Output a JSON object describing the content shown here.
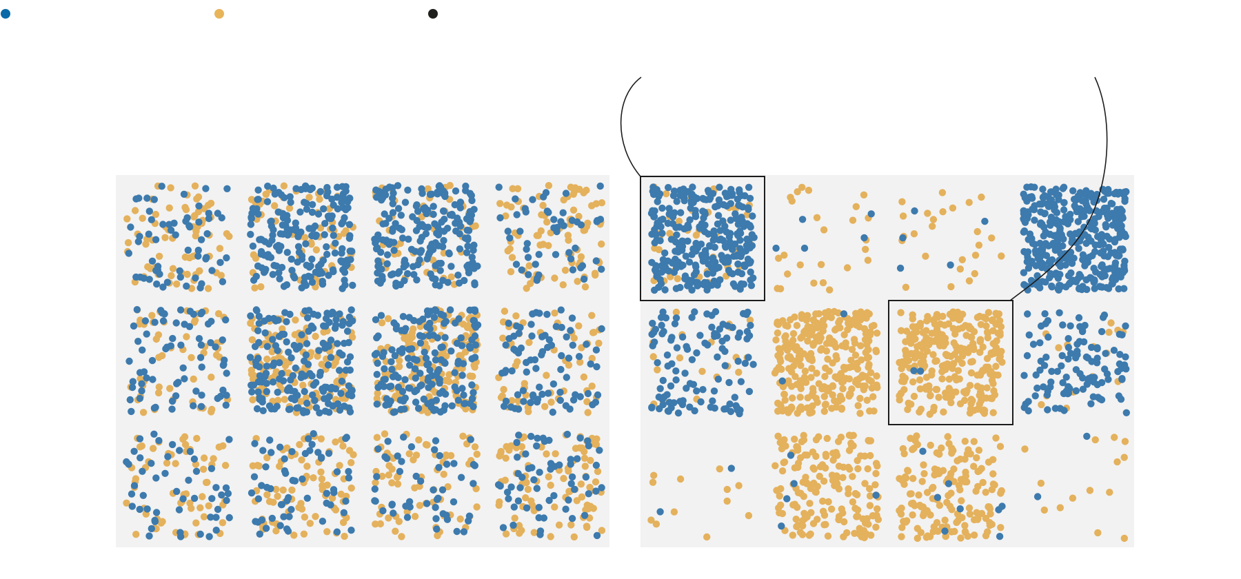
{
  "colors": {
    "blue": "#3d7aad",
    "yellow": "#e4b15c",
    "dark": "#1c1c1c",
    "panel": "#f2f2f2"
  },
  "legend": [
    {
      "id": "blue",
      "color": "#0a6aa8",
      "label": ""
    },
    {
      "id": "yellow",
      "color": "#e8b45a",
      "label": ""
    },
    {
      "id": "dark",
      "color": "#1f1f1b",
      "label": ""
    }
  ],
  "left_panel": {
    "cells": [
      [
        {
          "blue": 60,
          "yellow": 70
        },
        {
          "blue": 190,
          "yellow": 60
        },
        {
          "blue": 200,
          "yellow": 50
        },
        {
          "blue": 50,
          "yellow": 80
        }
      ],
      [
        {
          "blue": 70,
          "yellow": 50
        },
        {
          "blue": 180,
          "yellow": 130
        },
        {
          "blue": 170,
          "yellow": 150
        },
        {
          "blue": 80,
          "yellow": 60
        }
      ],
      [
        {
          "blue": 50,
          "yellow": 60
        },
        {
          "blue": 60,
          "yellow": 80
        },
        {
          "blue": 50,
          "yellow": 70
        },
        {
          "blue": 60,
          "yellow": 90
        }
      ]
    ]
  },
  "right_panel": {
    "cells": [
      [
        {
          "blue": 300,
          "yellow": 40,
          "highlight": true
        },
        {
          "blue": 5,
          "yellow": 25
        },
        {
          "blue": 5,
          "yellow": 25
        },
        {
          "blue": 380,
          "yellow": 0
        }
      ],
      [
        {
          "blue": 110,
          "yellow": 20
        },
        {
          "blue": 2,
          "yellow": 280
        },
        {
          "blue": 2,
          "yellow": 280,
          "highlight": true
        },
        {
          "blue": 110,
          "yellow": 15
        }
      ],
      [
        {
          "blue": 2,
          "yellow": 12
        },
        {
          "blue": 5,
          "yellow": 170
        },
        {
          "blue": 8,
          "yellow": 160
        },
        {
          "blue": 2,
          "yellow": 14
        }
      ]
    ]
  }
}
